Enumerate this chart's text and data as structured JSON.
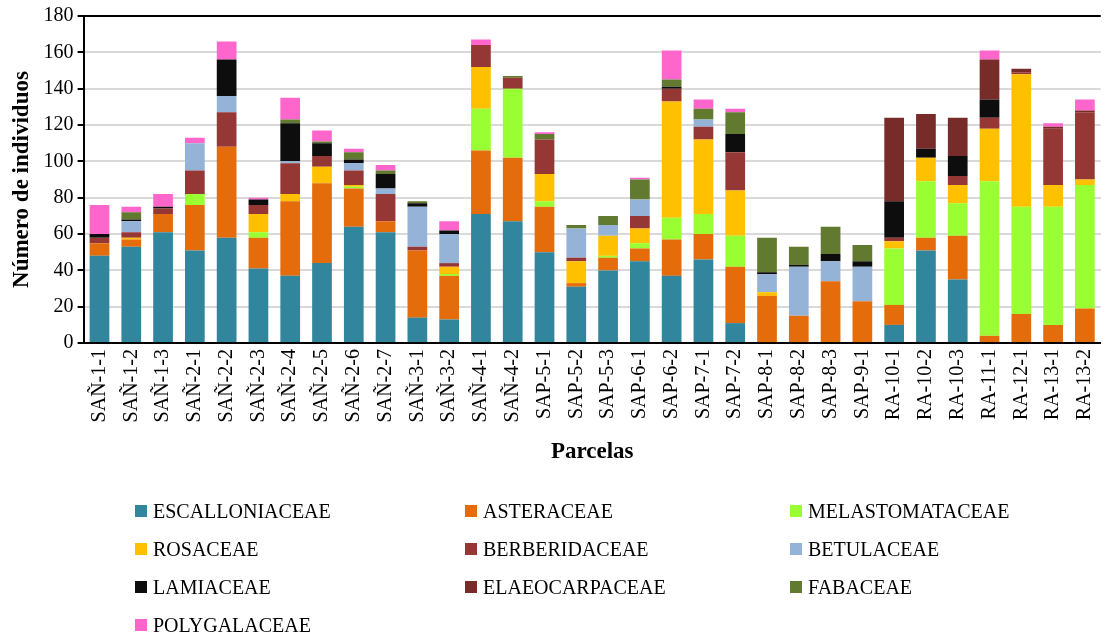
{
  "chart_data": {
    "type": "bar",
    "stacked": true,
    "xlabel": "Parcelas",
    "ylabel": "Número de individuos",
    "categories": [
      "SAÑ-1-1",
      "SAÑ-1-2",
      "SAÑ-1-3",
      "SAÑ-2-1",
      "SAÑ-2-2",
      "SAÑ-2-3",
      "SAÑ-2-4",
      "SAÑ-2-5",
      "SAÑ-2-6",
      "SAÑ-2-7",
      "SAÑ-3-1",
      "SAÑ-3-2",
      "SAÑ-4-1",
      "SAÑ-4-2",
      "SAP-5-1",
      "SAP-5-2",
      "SAP-5-3",
      "SAP-6-1",
      "SAP-6-2",
      "SAP-7-1",
      "SAP-7-2",
      "SAP-8-1",
      "SAP-8-2",
      "SAP-8-3",
      "SAP-9-1",
      "RA-10-1",
      "RA-10-2",
      "RA-10-3",
      "RA-11-1",
      "RA-12-1",
      "RA-13-1",
      "RA-13-2"
    ],
    "series": [
      {
        "name": "ESCALLONIACEAE",
        "color": "#31859c",
        "values": [
          48,
          53,
          61,
          51,
          58,
          41,
          37,
          44,
          64,
          61,
          14,
          13,
          71,
          67,
          50,
          31,
          40,
          45,
          37,
          46,
          11,
          null,
          null,
          null,
          null,
          10,
          51,
          35,
          null,
          null,
          null,
          null
        ]
      },
      {
        "name": "ASTERACEAE",
        "color": "#e46c0a",
        "values": [
          7,
          4,
          10,
          25,
          50,
          17,
          41,
          44,
          21,
          6,
          37,
          24,
          35,
          35,
          25,
          2,
          7,
          7,
          20,
          14,
          31,
          26,
          15,
          34,
          23,
          11,
          7,
          24,
          4,
          16,
          10,
          19
        ]
      },
      {
        "name": "MELASTOMATACEAE",
        "color": "#99ff33",
        "values": [
          null,
          null,
          null,
          6,
          null,
          3,
          null,
          null,
          1,
          null,
          null,
          1,
          23,
          38,
          3,
          null,
          1,
          3,
          12,
          11,
          17,
          null,
          null,
          null,
          null,
          31,
          31,
          18,
          85,
          59,
          65,
          68
        ]
      },
      {
        "name": "ROSACEAE",
        "color": "#ffc000",
        "values": [
          null,
          1,
          null,
          null,
          null,
          10,
          4,
          9,
          1,
          null,
          null,
          4,
          23,
          null,
          15,
          12,
          11,
          8,
          64,
          41,
          25,
          2,
          null,
          null,
          null,
          4,
          13,
          10,
          29,
          73,
          12,
          3
        ]
      },
      {
        "name": "BERBERIDACEAE",
        "color": "#953735",
        "values": [
          3,
          3,
          3,
          13,
          19,
          5,
          17,
          6,
          8,
          15,
          2,
          2,
          12,
          6,
          19,
          2,
          null,
          7,
          7,
          7,
          21,
          null,
          null,
          null,
          null,
          2,
          null,
          5,
          6,
          1,
          31,
          37
        ]
      },
      {
        "name": "BETULACEAE",
        "color": "#95b3d7",
        "values": [
          null,
          6,
          null,
          15,
          9,
          null,
          1,
          null,
          4,
          3,
          22,
          16,
          null,
          null,
          null,
          16,
          6,
          9,
          null,
          4,
          null,
          10,
          27,
          11,
          19,
          null,
          null,
          null,
          null,
          null,
          null,
          null
        ]
      },
      {
        "name": "LAMIACEAE",
        "color": "#0d0d0d",
        "values": [
          2,
          1,
          1,
          null,
          20,
          3,
          21,
          7,
          2,
          8,
          2,
          2,
          null,
          null,
          null,
          null,
          null,
          null,
          1,
          null,
          10,
          1,
          1,
          4,
          3,
          20,
          5,
          11,
          10,
          null,
          null,
          null
        ]
      },
      {
        "name": "ELAEOCARPACEAE",
        "color": "#772c2a",
        "values": [
          null,
          null,
          null,
          null,
          null,
          null,
          null,
          null,
          null,
          null,
          null,
          null,
          null,
          null,
          null,
          null,
          null,
          null,
          null,
          null,
          null,
          null,
          null,
          null,
          null,
          46,
          19,
          21,
          22,
          2,
          1,
          1
        ]
      },
      {
        "name": "FABACEAE",
        "color": "#617a30",
        "values": [
          null,
          4,
          null,
          null,
          null,
          null,
          2,
          1,
          4,
          2,
          1,
          null,
          null,
          1,
          3,
          2,
          5,
          11,
          4,
          6,
          12,
          19,
          10,
          15,
          9,
          null,
          null,
          null,
          null,
          null,
          null,
          null
        ]
      },
      {
        "name": "POLYGALACEAE",
        "color": "#ff66cc",
        "values": [
          16,
          3,
          7,
          3,
          10,
          1,
          12,
          6,
          2,
          3,
          null,
          5,
          3,
          null,
          1,
          null,
          null,
          1,
          16,
          5,
          2,
          null,
          null,
          null,
          null,
          null,
          null,
          null,
          5,
          null,
          2,
          6
        ]
      }
    ],
    "ylim": [
      0,
      180
    ],
    "yticks": [
      0,
      20,
      40,
      60,
      80,
      100,
      120,
      140,
      160,
      180
    ],
    "grid": "y",
    "legend": "bottom"
  }
}
